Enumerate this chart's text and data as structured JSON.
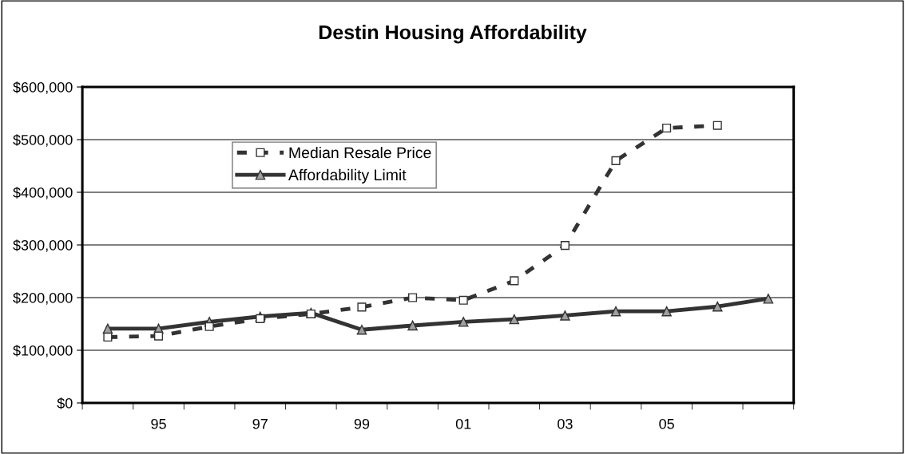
{
  "chart_data": {
    "type": "line",
    "title": "Destin Housing Affordability",
    "categories": [
      null,
      "95",
      null,
      "97",
      null,
      "99",
      null,
      "01",
      null,
      "03",
      null,
      "05",
      null,
      null
    ],
    "series": [
      {
        "name": "Median Resale Price",
        "color": "#333333",
        "marker": "square",
        "line_style": "dashed",
        "values": [
          125000,
          127000,
          145000,
          160000,
          169000,
          182000,
          200000,
          195000,
          232000,
          299000,
          460000,
          522000,
          527000,
          null
        ]
      },
      {
        "name": "Affordability Limit",
        "color": "#333333",
        "marker": "triangle",
        "line_style": "solid",
        "values": [
          141000,
          141000,
          154000,
          164000,
          171000,
          139000,
          147000,
          154000,
          159000,
          166000,
          174000,
          174000,
          183000,
          198000
        ]
      }
    ],
    "ylim": [
      0,
      600000
    ],
    "yticks": [
      {
        "value": 0,
        "label": "$0"
      },
      {
        "value": 100000,
        "label": "$100,000"
      },
      {
        "value": 200000,
        "label": "$200,000"
      },
      {
        "value": 300000,
        "label": "$300,000"
      },
      {
        "value": 400000,
        "label": "$400,000"
      },
      {
        "value": 500000,
        "label": "$500,000"
      },
      {
        "value": 600000,
        "label": "$600,000"
      }
    ],
    "grid": "y",
    "legend": "top left"
  }
}
